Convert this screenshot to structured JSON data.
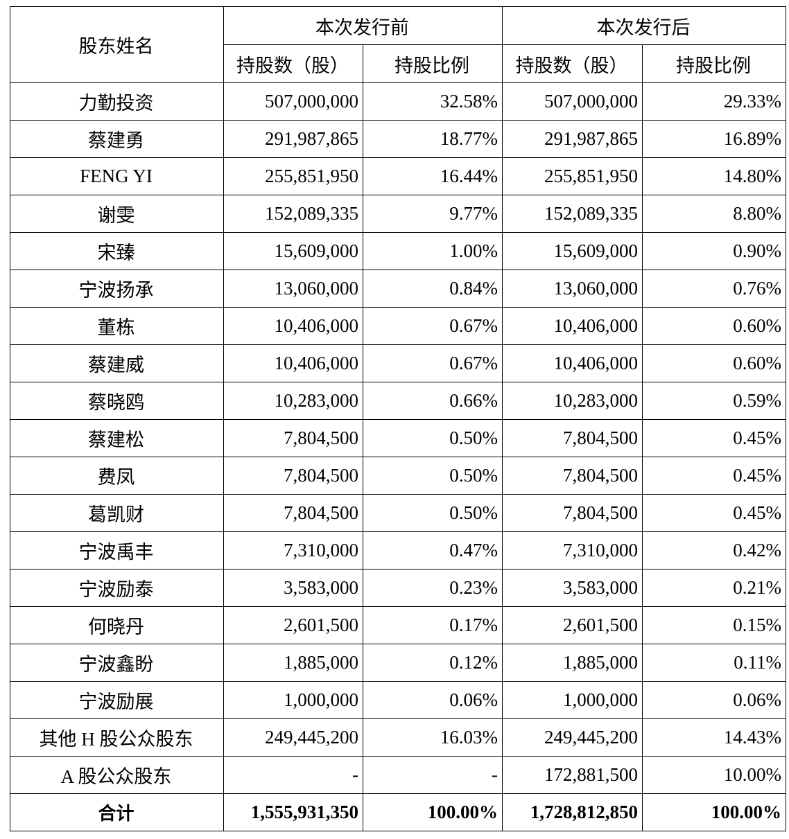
{
  "header": {
    "name_col": "股东姓名",
    "before_group": "本次发行前",
    "after_group": "本次发行后",
    "shares_col": "持股数（股）",
    "ratio_col": "持股比例"
  },
  "rows": [
    {
      "name": "力勤投资",
      "before_shares": "507,000,000",
      "before_ratio": "32.58%",
      "after_shares": "507,000,000",
      "after_ratio": "29.33%"
    },
    {
      "name": "蔡建勇",
      "before_shares": "291,987,865",
      "before_ratio": "18.77%",
      "after_shares": "291,987,865",
      "after_ratio": "16.89%"
    },
    {
      "name": "FENG YI",
      "before_shares": "255,851,950",
      "before_ratio": "16.44%",
      "after_shares": "255,851,950",
      "after_ratio": "14.80%"
    },
    {
      "name": "谢雯",
      "before_shares": "152,089,335",
      "before_ratio": "9.77%",
      "after_shares": "152,089,335",
      "after_ratio": "8.80%"
    },
    {
      "name": "宋臻",
      "before_shares": "15,609,000",
      "before_ratio": "1.00%",
      "after_shares": "15,609,000",
      "after_ratio": "0.90%"
    },
    {
      "name": "宁波扬承",
      "before_shares": "13,060,000",
      "before_ratio": "0.84%",
      "after_shares": "13,060,000",
      "after_ratio": "0.76%"
    },
    {
      "name": "董栋",
      "before_shares": "10,406,000",
      "before_ratio": "0.67%",
      "after_shares": "10,406,000",
      "after_ratio": "0.60%"
    },
    {
      "name": "蔡建威",
      "before_shares": "10,406,000",
      "before_ratio": "0.67%",
      "after_shares": "10,406,000",
      "after_ratio": "0.60%"
    },
    {
      "name": "蔡晓鸥",
      "before_shares": "10,283,000",
      "before_ratio": "0.66%",
      "after_shares": "10,283,000",
      "after_ratio": "0.59%"
    },
    {
      "name": "蔡建松",
      "before_shares": "7,804,500",
      "before_ratio": "0.50%",
      "after_shares": "7,804,500",
      "after_ratio": "0.45%"
    },
    {
      "name": "费凤",
      "before_shares": "7,804,500",
      "before_ratio": "0.50%",
      "after_shares": "7,804,500",
      "after_ratio": "0.45%"
    },
    {
      "name": "葛凯财",
      "before_shares": "7,804,500",
      "before_ratio": "0.50%",
      "after_shares": "7,804,500",
      "after_ratio": "0.45%"
    },
    {
      "name": "宁波禹丰",
      "before_shares": "7,310,000",
      "before_ratio": "0.47%",
      "after_shares": "7,310,000",
      "after_ratio": "0.42%"
    },
    {
      "name": "宁波励泰",
      "before_shares": "3,583,000",
      "before_ratio": "0.23%",
      "after_shares": "3,583,000",
      "after_ratio": "0.21%"
    },
    {
      "name": "何晓丹",
      "before_shares": "2,601,500",
      "before_ratio": "0.17%",
      "after_shares": "2,601,500",
      "after_ratio": "0.15%"
    },
    {
      "name": "宁波鑫盼",
      "before_shares": "1,885,000",
      "before_ratio": "0.12%",
      "after_shares": "1,885,000",
      "after_ratio": "0.11%"
    },
    {
      "name": "宁波励展",
      "before_shares": "1,000,000",
      "before_ratio": "0.06%",
      "after_shares": "1,000,000",
      "after_ratio": "0.06%"
    },
    {
      "name": "其他 H 股公众股东",
      "before_shares": "249,445,200",
      "before_ratio": "16.03%",
      "after_shares": "249,445,200",
      "after_ratio": "14.43%"
    },
    {
      "name": "A 股公众股东",
      "before_shares": "-",
      "before_ratio": "-",
      "after_shares": "172,881,500",
      "after_ratio": "10.00%"
    }
  ],
  "total": {
    "name": "合计",
    "before_shares": "1,555,931,350",
    "before_ratio": "100.00%",
    "after_shares": "1,728,812,850",
    "after_ratio": "100.00%"
  }
}
